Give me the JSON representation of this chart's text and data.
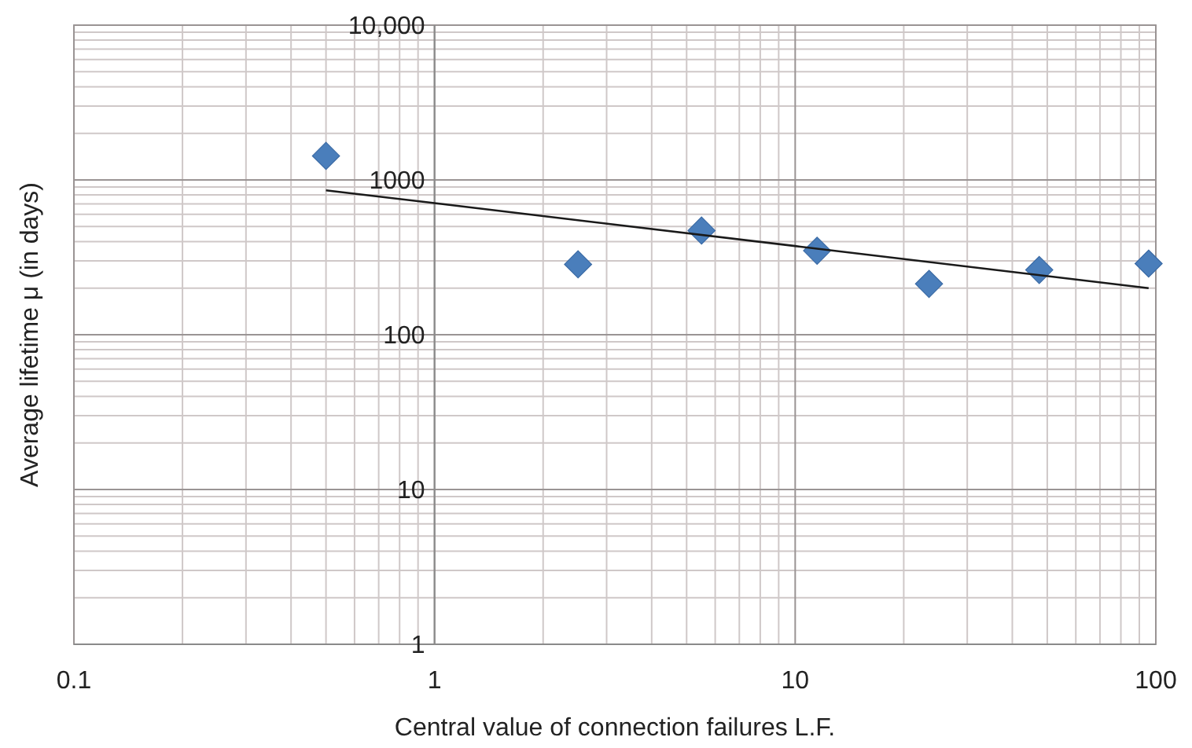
{
  "chart_data": {
    "type": "scatter",
    "xlabel": "Central value of connection failures L.F.",
    "ylabel": "Average lifetime μ (in days)",
    "log": "xy",
    "grid": true,
    "marker": "diamond",
    "xlim": [
      0.1,
      100
    ],
    "xticks": [
      0.1,
      1,
      10,
      100
    ],
    "ylim": [
      1,
      10000
    ],
    "yticks": [
      1,
      10,
      100,
      1000,
      {
        "value": 10000,
        "label": "10,000"
      }
    ],
    "series": [
      {
        "color": "#4a7ebb",
        "x": [
          0.5,
          2.5,
          5.5,
          11.5,
          23.5,
          47.5,
          95.5
        ],
        "values": [
          1430,
          285,
          471,
          349,
          213,
          262,
          288
        ]
      },
      {
        "type": "line",
        "color": "#1a1a1a",
        "marker": "none",
        "line_style": "solid",
        "x": [
          0.5,
          1,
          10,
          95.5
        ],
        "values": [
          857,
          708,
          374,
          200
        ]
      }
    ]
  }
}
